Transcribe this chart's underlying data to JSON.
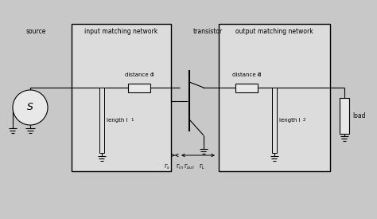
{
  "bg_outer": "#c8c8c8",
  "bg_inner": "#dcdcdc",
  "lc": "black",
  "box1_label": "input matching network",
  "box2_label": "output matching network",
  "source_label": "source",
  "transistor_label": "transistor",
  "load_label": "load",
  "dist1_label": "distance d",
  "dist1_sub": "1",
  "dist2_label": "distance d",
  "dist2_sub": "2",
  "len1_label": "length l",
  "len1_sub": "1",
  "len2_label": "length l",
  "len2_sub": "2",
  "gs_label": "Γ",
  "gs_sub": "s",
  "gin_label": "Γ",
  "gin_sub": "in",
  "gout_label": "Γ",
  "gout_sub": "out",
  "gl_label": "Γ",
  "gl_sub": "L"
}
